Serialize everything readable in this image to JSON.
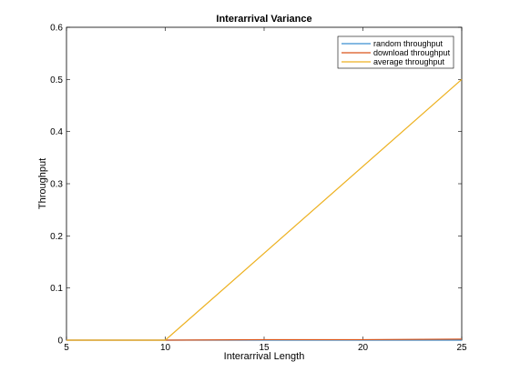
{
  "chart_data": {
    "type": "line",
    "title": "Interarrival Variance",
    "xlabel": "Interarrival Length",
    "ylabel": "Throughput",
    "xlim": [
      5,
      25
    ],
    "ylim": [
      0,
      0.6
    ],
    "xticks": [
      5,
      10,
      15,
      20,
      25
    ],
    "yticks": [
      0,
      0.1,
      0.2,
      0.3,
      0.4,
      0.5,
      0.6
    ],
    "grid": false,
    "legend_position": "top-right",
    "series": [
      {
        "name": "random throughput",
        "color": "#3a8fd0",
        "x": [
          5,
          10,
          25
        ],
        "y": [
          0,
          0,
          0
        ]
      },
      {
        "name": "download throughput",
        "color": "#d9541a",
        "x": [
          5,
          10,
          15,
          20,
          25
        ],
        "y": [
          0,
          0,
          0.001,
          0.001,
          0.002
        ]
      },
      {
        "name": "average throughput",
        "color": "#edb120",
        "x": [
          5,
          10,
          25
        ],
        "y": [
          0,
          0,
          0.5
        ]
      }
    ]
  }
}
